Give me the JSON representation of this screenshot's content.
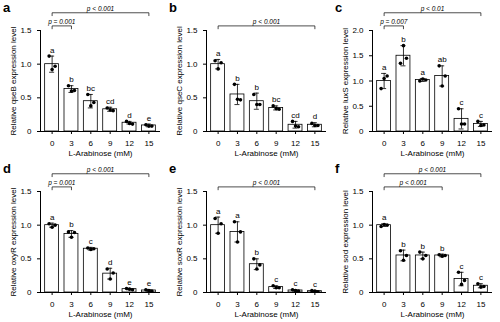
{
  "chart_data": [
    {
      "type": "bar",
      "title": "a",
      "x_label": "L-Arabinose (mM)",
      "y_label": "Relative qseB expression level",
      "categories": [
        "0",
        "3",
        "6",
        "9",
        "12",
        "15"
      ],
      "color": "#ffffff",
      "marker": "circle",
      "values": [
        1.0,
        0.63,
        0.45,
        0.33,
        0.13,
        0.09
      ],
      "errors": [
        0.12,
        0.05,
        0.1,
        0.03,
        0.02,
        0.02
      ],
      "points": [
        [
          1.12,
          0.92,
          0.97
        ],
        [
          0.68,
          0.6,
          0.61
        ],
        [
          0.55,
          0.38,
          0.43
        ],
        [
          0.35,
          0.32,
          0.31
        ],
        [
          0.15,
          0.12,
          0.11
        ],
        [
          0.1,
          0.08,
          0.08
        ]
      ],
      "letters": [
        "a",
        "b",
        "bc",
        "cd",
        "d",
        "e"
      ],
      "comparisons": [
        {
          "from": "0",
          "to": "3",
          "label": "p = 0.001"
        },
        {
          "from": "0",
          "to": "15",
          "label": "p < 0.001"
        }
      ],
      "ylim": [
        0,
        1.5
      ],
      "yticks": [
        0,
        0.5,
        {
          "value": 1,
          "label": "1.0"
        },
        1.5
      ]
    },
    {
      "type": "bar",
      "title": "b",
      "x_label": "L-Arabinose (mM)",
      "y_label": "Relative qseC expression level",
      "categories": [
        "0",
        "3",
        "6",
        "9",
        "12",
        "15"
      ],
      "color": "#ffffff",
      "marker": "circle",
      "values": [
        1.0,
        0.55,
        0.45,
        0.35,
        0.1,
        0.1
      ],
      "errors": [
        0.07,
        0.15,
        0.12,
        0.03,
        0.05,
        0.03
      ],
      "points": [
        [
          1.05,
          0.93,
          1.02
        ],
        [
          0.7,
          0.48,
          0.47
        ],
        [
          0.55,
          0.4,
          0.4
        ],
        [
          0.38,
          0.34,
          0.33
        ],
        [
          0.15,
          0.08,
          0.07
        ],
        [
          0.12,
          0.09,
          0.09
        ]
      ],
      "letters": [
        "a",
        "b",
        "b",
        "bc",
        "cd",
        "d"
      ],
      "comparisons": [
        {
          "from": "0",
          "to": "15",
          "label": "p < 0.001"
        }
      ],
      "ylim": [
        0,
        1.5
      ],
      "yticks": [
        0,
        0.5,
        {
          "value": 1,
          "label": "1.0"
        },
        1.5
      ]
    },
    {
      "type": "bar",
      "title": "c",
      "x_label": "L-Arabinose (mM)",
      "y_label": "Relative luxS expression level",
      "categories": [
        "0",
        "3",
        "6",
        "9",
        "12",
        "15"
      ],
      "color": "#ffffff",
      "marker": "circle",
      "values": [
        1.0,
        1.5,
        1.02,
        1.1,
        0.25,
        0.15
      ],
      "errors": [
        0.15,
        0.2,
        0.03,
        0.2,
        0.2,
        0.05
      ],
      "points": [
        [
          0.85,
          1.05,
          1.1
        ],
        [
          1.35,
          1.7,
          1.45
        ],
        [
          1.0,
          1.04,
          1.02
        ],
        [
          1.3,
          0.9,
          1.1
        ],
        [
          0.45,
          0.15,
          0.15
        ],
        [
          0.2,
          0.12,
          0.13
        ]
      ],
      "letters": [
        "a",
        "b",
        "a",
        "ab",
        "c",
        "c"
      ],
      "comparisons": [
        {
          "from": "0",
          "to": "3",
          "label": "p = 0.007"
        },
        {
          "from": "0",
          "to": "15",
          "label": "p < 0.01"
        }
      ],
      "ylim": [
        0,
        2
      ],
      "yticks": [
        0,
        0.5,
        {
          "value": 1,
          "label": "1.0"
        },
        1.5,
        {
          "value": 2,
          "label": "2.0"
        }
      ]
    },
    {
      "type": "bar",
      "title": "d",
      "x_label": "L-Arabinose (mM)",
      "y_label": "Relative oxyR expression level",
      "categories": [
        "0",
        "3",
        "6",
        "9",
        "12",
        "15"
      ],
      "color": "#ffffff",
      "marker": "circle",
      "values": [
        1.0,
        0.87,
        0.65,
        0.28,
        0.05,
        0.03
      ],
      "errors": [
        0.03,
        0.05,
        0.02,
        0.08,
        0.01,
        0.01
      ],
      "points": [
        [
          1.02,
          0.97,
          1.0
        ],
        [
          0.9,
          0.82,
          0.89
        ],
        [
          0.66,
          0.64,
          0.65
        ],
        [
          0.35,
          0.2,
          0.29
        ],
        [
          0.06,
          0.05,
          0.04
        ],
        [
          0.04,
          0.03,
          0.02
        ]
      ],
      "letters": [
        "a",
        "b",
        "c",
        "d",
        "e",
        "e"
      ],
      "comparisons": [
        {
          "from": "0",
          "to": "3",
          "label": "p = 0.001"
        },
        {
          "from": "0",
          "to": "15",
          "label": "p < 0.001"
        }
      ],
      "ylim": [
        0,
        1.5
      ],
      "yticks": [
        0,
        0.5,
        {
          "value": 1,
          "label": "1.0"
        },
        1.5
      ]
    },
    {
      "type": "bar",
      "title": "e",
      "x_label": "L-Arabinose (mM)",
      "y_label": "Relative soxR expression level",
      "categories": [
        "0",
        "3",
        "6",
        "9",
        "12",
        "15"
      ],
      "color": "#ffffff",
      "marker": "circle",
      "values": [
        1.0,
        0.9,
        0.42,
        0.08,
        0.03,
        0.02
      ],
      "errors": [
        0.12,
        0.15,
        0.08,
        0.02,
        0.01,
        0.01
      ],
      "points": [
        [
          1.1,
          0.88,
          1.02
        ],
        [
          1.05,
          0.75,
          0.9
        ],
        [
          0.5,
          0.35,
          0.41
        ],
        [
          0.1,
          0.07,
          0.07
        ],
        [
          0.04,
          0.03,
          0.02
        ],
        [
          0.03,
          0.02,
          0.01
        ]
      ],
      "letters": [
        "a",
        "a",
        "b",
        "c",
        "c",
        "c"
      ],
      "comparisons": [
        {
          "from": "0",
          "to": "15",
          "label": "p < 0.001"
        }
      ],
      "ylim": [
        0,
        1.5
      ],
      "yticks": [
        0,
        0.5,
        {
          "value": 1,
          "label": "1.0"
        },
        1.5
      ]
    },
    {
      "type": "bar",
      "title": "f",
      "x_label": "L-Arabinose (mM)",
      "y_label": "Relative sod expression level",
      "categories": [
        "0",
        "3",
        "6",
        "9",
        "12",
        "15"
      ],
      "color": "#ffffff",
      "marker": "circle",
      "values": [
        1.0,
        0.55,
        0.55,
        0.55,
        0.2,
        0.1
      ],
      "errors": [
        0.02,
        0.08,
        0.05,
        0.02,
        0.1,
        0.03
      ],
      "points": [
        [
          0.98,
          1.01,
          1.0
        ],
        [
          0.62,
          0.48,
          0.55
        ],
        [
          0.6,
          0.5,
          0.55
        ],
        [
          0.56,
          0.54,
          0.55
        ],
        [
          0.3,
          0.12,
          0.18
        ],
        [
          0.13,
          0.08,
          0.09
        ]
      ],
      "letters": [
        "a",
        "b",
        "b",
        "b",
        "c",
        "c"
      ],
      "comparisons": [
        {
          "from": "0",
          "to": "9",
          "label": "p < 0.001"
        },
        {
          "from": "0",
          "to": "15",
          "label": "p < 0.001"
        }
      ],
      "ylim": [
        0,
        1.5
      ],
      "yticks": [
        0,
        0.5,
        {
          "value": 1,
          "label": "1.0"
        },
        1.5
      ]
    }
  ]
}
